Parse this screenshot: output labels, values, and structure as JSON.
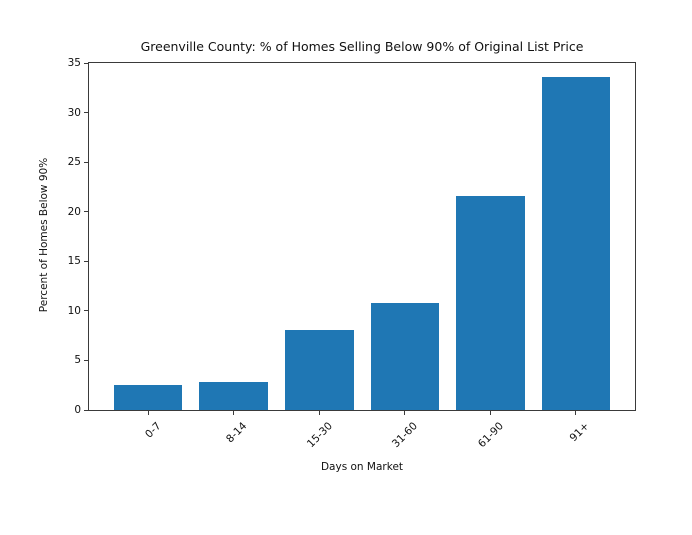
{
  "figure": {
    "background_color": "#ffffff",
    "text_color": "#111111",
    "axis_color": "#3a3a3a"
  },
  "chart_data": {
    "type": "bar",
    "title": "Greenville County: % of Homes Selling Below 90% of Original List Price",
    "xlabel": "Days on Market",
    "ylabel": "Percent of Homes Below 90%",
    "categories": [
      "0-7",
      "8-14",
      "15-30",
      "31-60",
      "61-90",
      "91+"
    ],
    "values": [
      2.5,
      2.8,
      8.1,
      10.8,
      21.6,
      33.6
    ],
    "ylim": [
      0,
      35
    ],
    "yticks": [
      0,
      5,
      10,
      15,
      20,
      25,
      30,
      35
    ],
    "bar_color": "#1f77b4",
    "grid": false,
    "legend_position": "none",
    "x_tick_rotation_deg": 45
  }
}
